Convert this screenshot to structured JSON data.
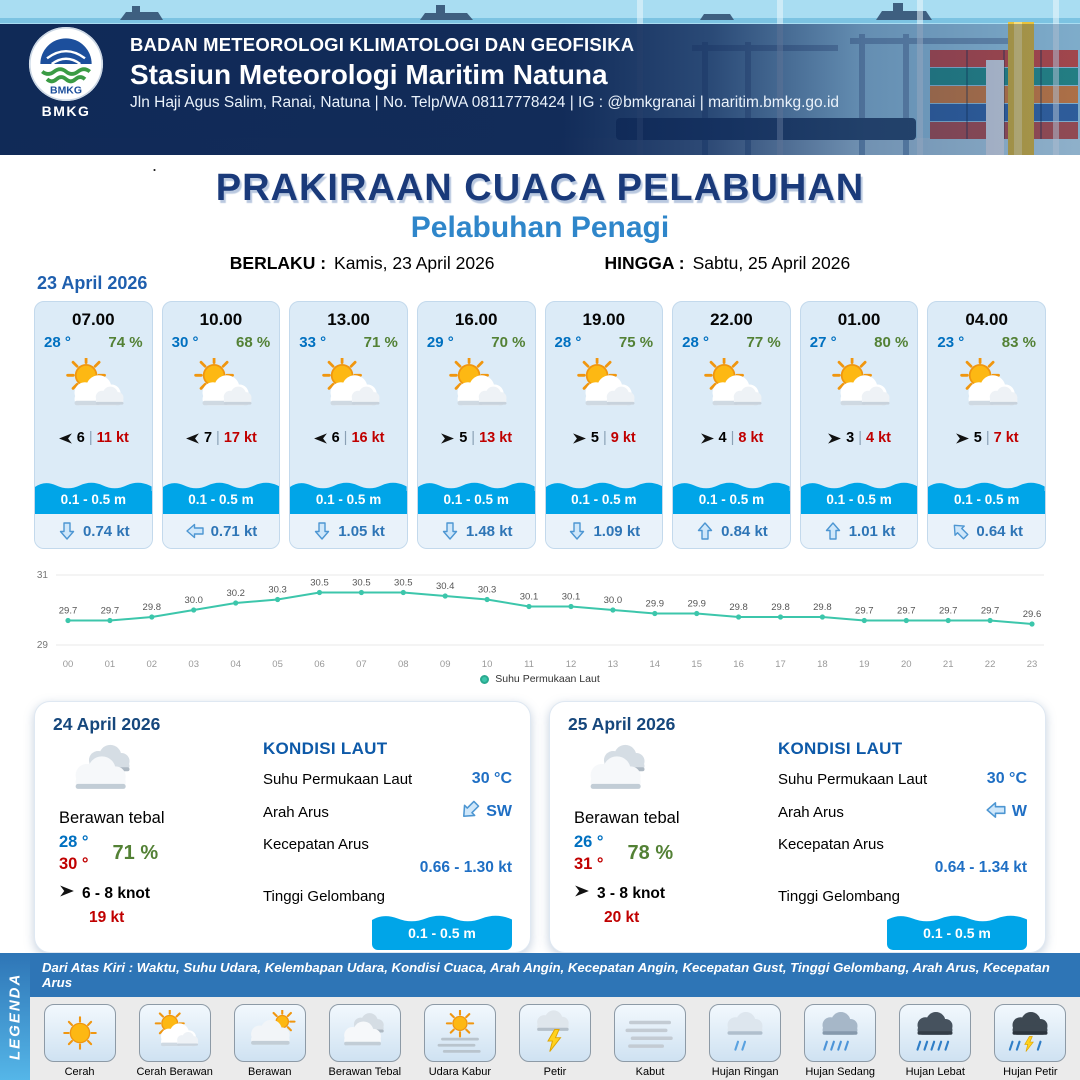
{
  "header": {
    "logo_text": "BMKG",
    "org_line": "BADAN METEOROLOGI KLIMATOLOGI DAN GEOFISIKA",
    "station_line": "Stasiun Meteorologi Maritim Natuna",
    "contact_line": "Jln Haji Agus Salim, Ranai, Natuna | No. Telp/WA 08117778424 | IG : @bmkgranai | maritim.bmkg.go.id"
  },
  "title_block": {
    "stray_dot": ".",
    "main_title": "PRAKIRAAN CUACA PELABUHAN",
    "subtitle": "Pelabuhan Penagi",
    "berlaku_label": "BERLAKU :",
    "berlaku_value": "Kamis, 23 April 2026",
    "hingga_label": "HINGGA :",
    "hingga_value": "Sabtu, 25 April 2026"
  },
  "forecast_date": "23 April 2026",
  "hourly_cards": [
    {
      "time": "07.00",
      "temp": "28 °",
      "humidity": "74 %",
      "wind_speed": "6",
      "gust": "11 kt",
      "wind_arrow_deg": 180,
      "wave_height": "0.1 - 0.5 m",
      "current_speed": "0.74 kt",
      "current_arrow_deg": 180
    },
    {
      "time": "10.00",
      "temp": "30 °",
      "humidity": "68 %",
      "wind_speed": "7",
      "gust": "17 kt",
      "wind_arrow_deg": 180,
      "wave_height": "0.1 - 0.5 m",
      "current_speed": "0.71 kt",
      "current_arrow_deg": 270
    },
    {
      "time": "13.00",
      "temp": "33 °",
      "humidity": "71 %",
      "wind_speed": "6",
      "gust": "16 kt",
      "wind_arrow_deg": 180,
      "wave_height": "0.1 - 0.5 m",
      "current_speed": "1.05 kt",
      "current_arrow_deg": 180
    },
    {
      "time": "16.00",
      "temp": "29 °",
      "humidity": "70 %",
      "wind_speed": "5",
      "gust": "13 kt",
      "wind_arrow_deg": 0,
      "wave_height": "0.1 - 0.5 m",
      "current_speed": "1.48 kt",
      "current_arrow_deg": 180
    },
    {
      "time": "19.00",
      "temp": "28 °",
      "humidity": "75 %",
      "wind_speed": "5",
      "gust": "9 kt",
      "wind_arrow_deg": 0,
      "wave_height": "0.1 - 0.5 m",
      "current_speed": "1.09 kt",
      "current_arrow_deg": 180
    },
    {
      "time": "22.00",
      "temp": "28 °",
      "humidity": "77 %",
      "wind_speed": "4",
      "gust": "8 kt",
      "wind_arrow_deg": 0,
      "wave_height": "0.1 - 0.5 m",
      "current_speed": "0.84 kt",
      "current_arrow_deg": 0
    },
    {
      "time": "01.00",
      "temp": "27 °",
      "humidity": "80 %",
      "wind_speed": "3",
      "gust": "4 kt",
      "wind_arrow_deg": 0,
      "wave_height": "0.1 - 0.5 m",
      "current_speed": "1.01 kt",
      "current_arrow_deg": 0
    },
    {
      "time": "04.00",
      "temp": "23 °",
      "humidity": "83 %",
      "wind_speed": "5",
      "gust": "7 kt",
      "wind_arrow_deg": 0,
      "wave_height": "0.1 - 0.5 m",
      "current_speed": "0.64 kt",
      "current_arrow_deg": 315
    }
  ],
  "chart_data": {
    "type": "line",
    "title": "Suhu Permukaan Laut",
    "series_label": "Suhu Permukaan Laut",
    "x": [
      "00",
      "01",
      "02",
      "03",
      "04",
      "05",
      "06",
      "07",
      "08",
      "09",
      "10",
      "11",
      "12",
      "13",
      "14",
      "15",
      "16",
      "17",
      "18",
      "19",
      "20",
      "21",
      "22",
      "23"
    ],
    "values": [
      29.7,
      29.7,
      29.8,
      30.0,
      30.2,
      30.3,
      30.5,
      30.5,
      30.5,
      30.4,
      30.3,
      30.1,
      30.1,
      30.0,
      29.9,
      29.9,
      29.8,
      29.8,
      29.8,
      29.7,
      29.7,
      29.7,
      29.7,
      29.6
    ],
    "ylim": [
      29,
      31
    ],
    "yticks": [
      "29",
      "31"
    ],
    "line_color": "#3cc6ab",
    "legend_position": "bottom",
    "grid": false
  },
  "daily_cards": [
    {
      "date": "24 April 2026",
      "condition": "Berawan tebal",
      "temp_min": "28 °",
      "temp_max": "30 °",
      "humidity": "71 %",
      "wind_range": "6 - 8 knot",
      "gust": "19 kt",
      "sea_title": "KONDISI LAUT",
      "sst_label": "Suhu Permukaan Laut",
      "sst_value": "30 °C",
      "current_dir_label": "Arah Arus",
      "current_dir_value": "SW",
      "current_dir_deg": 225,
      "current_speed_label": "Kecepatan Arus",
      "current_speed_value": "0.66 - 1.30 kt",
      "wave_label": "Tinggi Gelombang",
      "wave_value": "0.1 - 0.5 m"
    },
    {
      "date": "25 April 2026",
      "condition": "Berawan tebal",
      "temp_min": "26 °",
      "temp_max": "31 °",
      "humidity": "78 %",
      "wind_range": "3 - 8 knot",
      "gust": "20 kt",
      "sea_title": "KONDISI LAUT",
      "sst_label": "Suhu Permukaan Laut",
      "sst_value": "30 °C",
      "current_dir_label": "Arah Arus",
      "current_dir_value": "W",
      "current_dir_deg": 270,
      "current_speed_label": "Kecepatan Arus",
      "current_speed_value": "0.64 - 1.34 kt",
      "wave_label": "Tinggi Gelombang",
      "wave_value": "0.1 - 0.5 m"
    }
  ],
  "legend": {
    "banner": "LEGENDA",
    "note": "Dari Atas Kiri : Waktu, Suhu Udara, Kelembapan Udara, Kondisi Cuaca, Arah Angin, Kecepatan Angin, Kecepatan Gust, Tinggi Gelombang, Arah Arus, Kecepatan Arus",
    "items": [
      {
        "label": "Cerah",
        "icon": "cerah"
      },
      {
        "label": "Cerah Berawan",
        "icon": "cerah-berawan"
      },
      {
        "label": "Berawan",
        "icon": "berawan"
      },
      {
        "label": "Berawan Tebal",
        "icon": "berawan-tebal"
      },
      {
        "label": "Udara Kabur",
        "icon": "udara-kabur"
      },
      {
        "label": "Petir",
        "icon": "petir"
      },
      {
        "label": "Kabut",
        "icon": "kabut"
      },
      {
        "label": "Hujan Ringan",
        "icon": "hujan-ringan"
      },
      {
        "label": "Hujan Sedang",
        "icon": "hujan-sedang"
      },
      {
        "label": "Hujan Lebat",
        "icon": "hujan-lebat"
      },
      {
        "label": "Hujan Petir",
        "icon": "hujan-petir"
      }
    ]
  },
  "colors": {
    "accent_navy": "#1a3a7a",
    "subtitle_blue": "#2f86ca",
    "temp_blue": "#0070c0",
    "humidity_green": "#538135",
    "gust_red": "#c00000",
    "wave_blue": "#00a5e8",
    "line_teal": "#3cc6ab",
    "legend_bar_blue": "#2e75b6"
  }
}
